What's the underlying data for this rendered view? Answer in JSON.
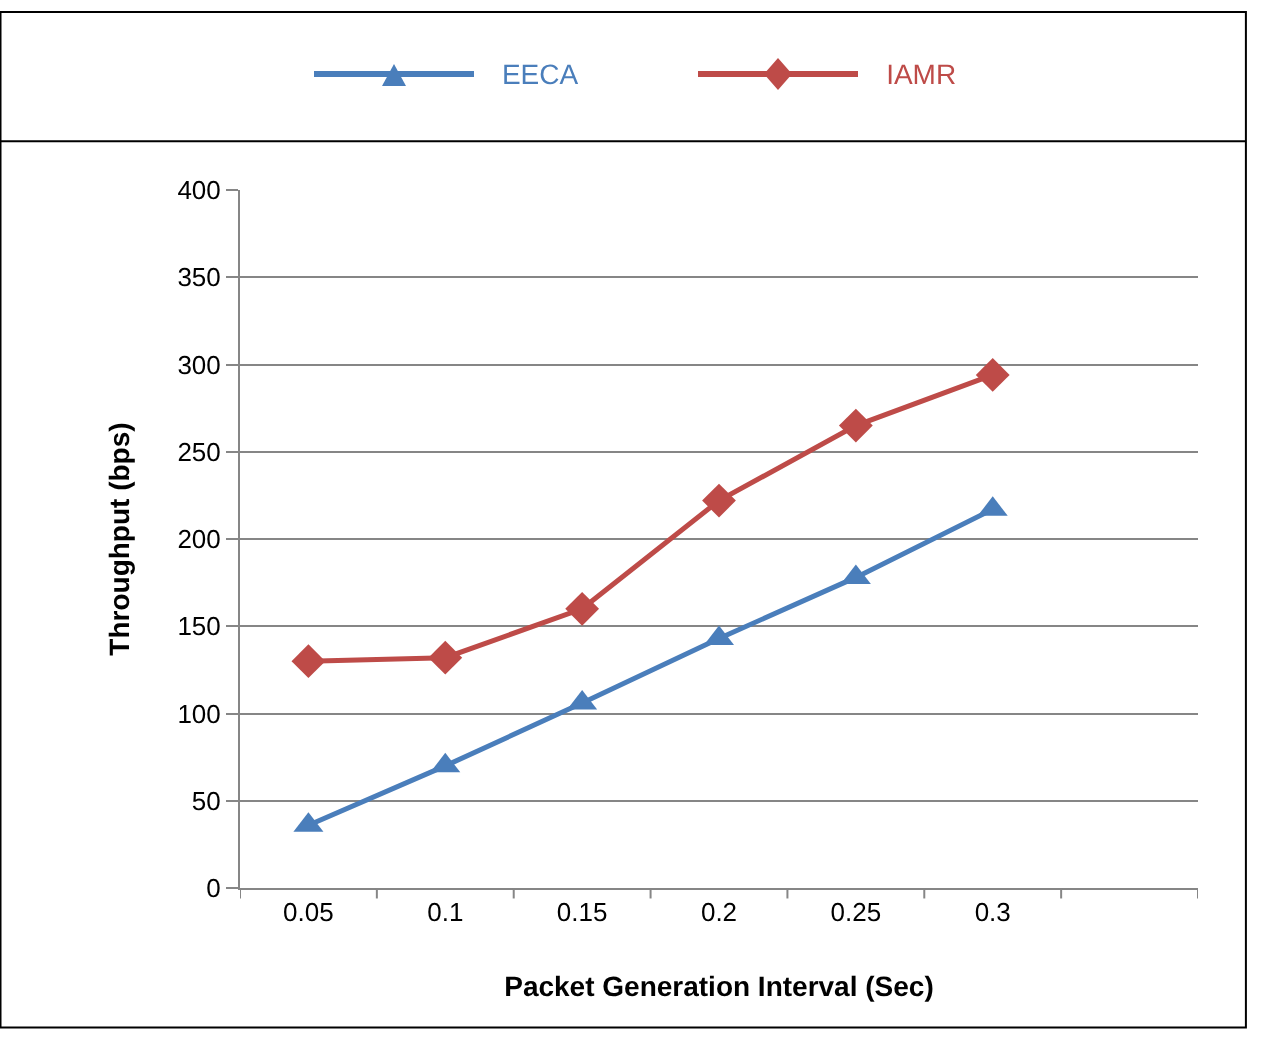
{
  "chart_data": {
    "type": "line",
    "xlabel": "Packet Generation Interval (Sec)",
    "ylabel": "Throughput (bps)",
    "categories": [
      "0.05",
      "0.1",
      "0.15",
      "0.2",
      "0.25",
      "0.3",
      null
    ],
    "series": [
      {
        "name": "EECA",
        "color": "#4a7ebb",
        "marker": "triangle",
        "values": [
          36,
          70,
          106,
          143,
          178,
          217,
          null
        ]
      },
      {
        "name": "IAMR",
        "color": "#be4b48",
        "marker": "diamond",
        "values": [
          130,
          132,
          160,
          222,
          265,
          294,
          null
        ]
      }
    ],
    "ylim": [
      0,
      400
    ],
    "yticks": [
      0,
      50,
      100,
      150,
      200,
      250,
      300,
      350,
      400
    ],
    "grid": "y",
    "legend": "top"
  }
}
